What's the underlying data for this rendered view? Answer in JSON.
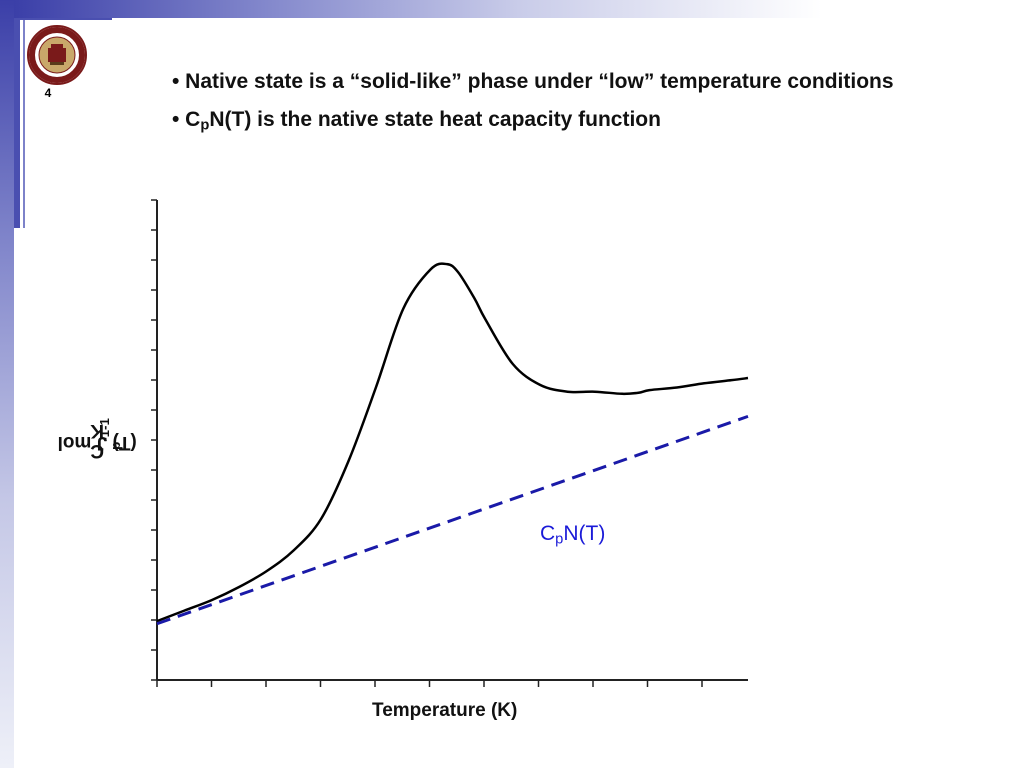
{
  "slide": {
    "number": "4",
    "logo_icon": "florida-state-university-seal-icon",
    "accent_color": "#3b3fa8"
  },
  "bullets": [
    {
      "text": "• Native state is a “solid-like” phase under “low” temperature conditions"
    },
    {
      "prefix": "• C",
      "sub": "p",
      "suffix": "N(T) is the native state heat capacity function"
    }
  ],
  "chart_data": {
    "type": "line",
    "xlabel": "Temperature (K)",
    "ylabel": {
      "main": "C",
      "sub": "p",
      "mid": "(T) J mol",
      "sup1": "-1",
      "tail": " K",
      "sup2": "-1"
    },
    "xlim": [
      0,
      10.8
    ],
    "ylim": [
      0,
      8
    ],
    "x_ticks_shown": false,
    "y_ticks_shown": false,
    "series": [
      {
        "style": "solid",
        "color": "#000000",
        "x": [
          0,
          0.5,
          1,
          1.5,
          2,
          2.5,
          3,
          3.5,
          4,
          4.5,
          5,
          5.3,
          5.5,
          5.8,
          6,
          6.5,
          7,
          7.5,
          8,
          8.5,
          8.8,
          9,
          9.5,
          10,
          10.5,
          10.8
        ],
        "y": [
          0.55,
          0.75,
          0.95,
          1.2,
          1.5,
          1.9,
          2.5,
          3.6,
          5.0,
          6.5,
          7.25,
          7.35,
          7.2,
          6.7,
          6.3,
          5.45,
          5.05,
          4.92,
          4.92,
          4.88,
          4.9,
          4.95,
          5.0,
          5.08,
          5.14,
          5.18
        ]
      },
      {
        "name": "CpN(T)",
        "style": "dashed",
        "color": "#1a1aa8",
        "x": [
          0,
          10.8
        ],
        "y": [
          0.5,
          4.45
        ]
      }
    ],
    "annotation": {
      "prefix": "C",
      "sub": "p",
      "suffix": "N(T)",
      "color": "#1a1ad8"
    }
  }
}
